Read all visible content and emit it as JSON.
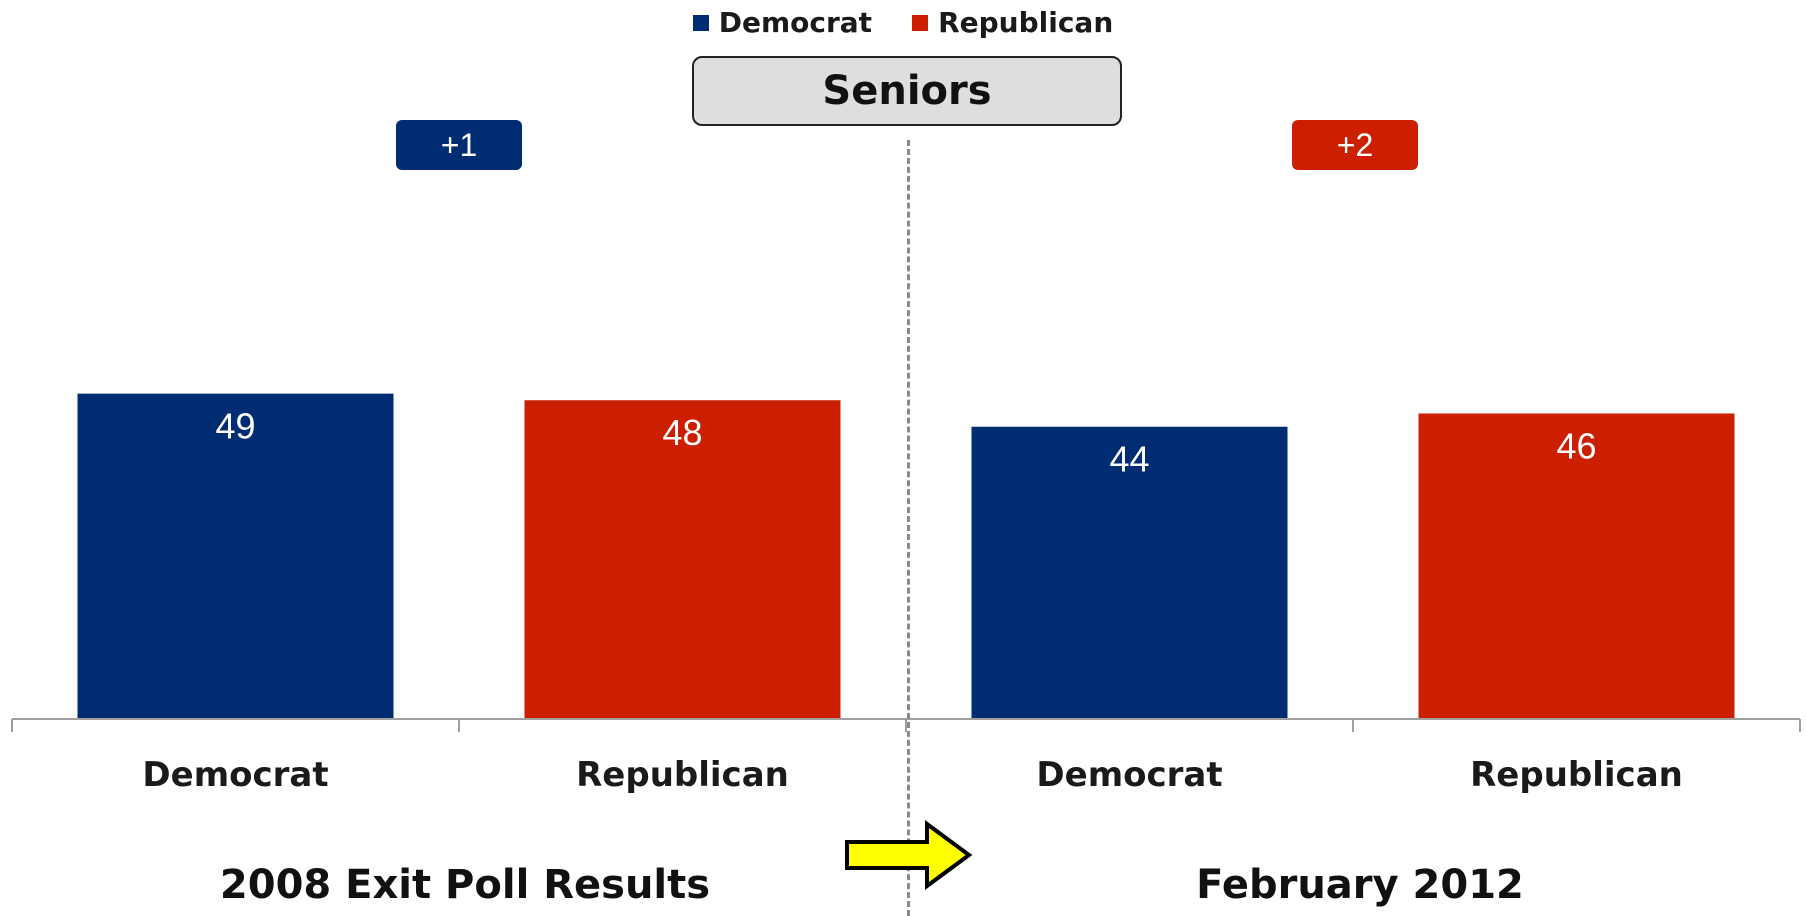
{
  "legend": [
    {
      "label": "Democrat",
      "color": "#002d72"
    },
    {
      "label": "Republican",
      "color": "#cc1f00"
    }
  ],
  "chart_title": "Seniors",
  "badges": [
    {
      "text": "+1",
      "color": "#002d72"
    },
    {
      "text": "+2",
      "color": "#cc1f00"
    }
  ],
  "groups": [
    {
      "title": "2008 Exit Poll Results"
    },
    {
      "title": "February 2012"
    }
  ],
  "colors": {
    "democrat": "#002d72",
    "republican": "#cc1f00",
    "axis": "#a0a0a0"
  },
  "icons": {
    "transition": "yellow-arrow-right-icon"
  },
  "chart_data": {
    "type": "bar",
    "title": "Seniors",
    "categories": [
      "Democrat",
      "Republican",
      "Democrat",
      "Republican"
    ],
    "groups": [
      "2008 Exit Poll Results",
      "February 2012"
    ],
    "series": [
      {
        "name": "Democrat",
        "values": [
          49,
          null,
          44,
          null
        ]
      },
      {
        "name": "Republican",
        "values": [
          null,
          48,
          null,
          46
        ]
      }
    ],
    "values": [
      49,
      48,
      44,
      46
    ],
    "data_labels": [
      "49",
      "48",
      "44",
      "46"
    ],
    "ylim": [
      0,
      100
    ],
    "grid": false,
    "legend": "top-center"
  }
}
